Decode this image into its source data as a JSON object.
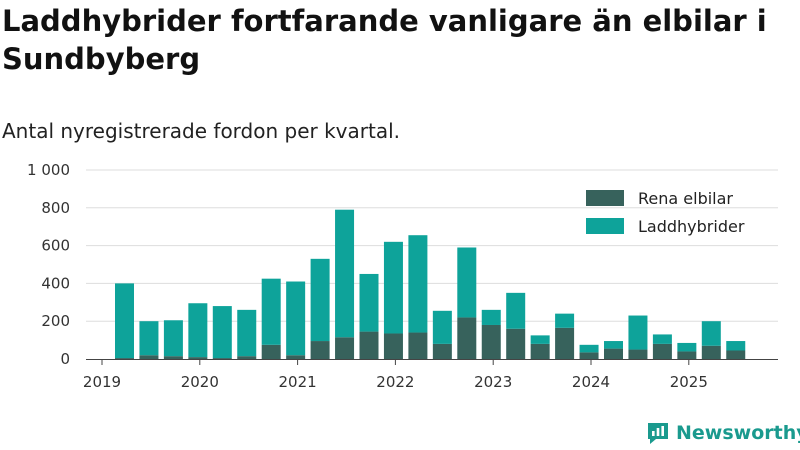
{
  "title": "Laddhybrider fortfarande vanligare än elbilar i Sundbyberg",
  "subtitle": "Antal nyregistrerade fordon per kvartal.",
  "brand": {
    "name": "Newsworthy",
    "icon": "bar-chart-icon"
  },
  "colors": {
    "elbilar": "#37625c",
    "laddhybrider": "#0ea39a",
    "grid": "#dddddd",
    "axis": "#444444"
  },
  "chart_data": {
    "type": "bar",
    "stacked": true,
    "title": "Laddhybrider fortfarande vanligare än elbilar i Sundbyberg",
    "subtitle": "Antal nyregistrerade fordon per kvartal.",
    "xlabel": "",
    "ylabel": "",
    "ylim": [
      0,
      1000
    ],
    "yticks": [
      0,
      200,
      400,
      600,
      800,
      1000
    ],
    "ytick_labels": [
      "0",
      "200",
      "400",
      "600",
      "800",
      "1 000"
    ],
    "xtick_labels": [
      "2019",
      "2020",
      "2021",
      "2022",
      "2023",
      "2024",
      "2025"
    ],
    "grid": true,
    "legend_position": "top-right",
    "categories": [
      "2019 Q2",
      "2019 Q3",
      "2019 Q4",
      "2020 Q1",
      "2020 Q2",
      "2020 Q3",
      "2020 Q4",
      "2021 Q1",
      "2021 Q2",
      "2021 Q3",
      "2021 Q4",
      "2022 Q1",
      "2022 Q2",
      "2022 Q3",
      "2022 Q4",
      "2023 Q1",
      "2023 Q2",
      "2023 Q3",
      "2023 Q4",
      "2024 Q1",
      "2024 Q2",
      "2024 Q3",
      "2024 Q4",
      "2025 Q1",
      "2025 Q2",
      "2025 Q3"
    ],
    "series": [
      {
        "name": "Rena elbilar",
        "values": [
          5,
          20,
          15,
          10,
          5,
          15,
          75,
          20,
          95,
          115,
          145,
          135,
          140,
          80,
          220,
          180,
          160,
          80,
          165,
          35,
          55,
          50,
          80,
          40,
          70,
          45
        ]
      },
      {
        "name": "Laddhybrider",
        "values": [
          395,
          180,
          190,
          285,
          275,
          245,
          350,
          390,
          435,
          675,
          305,
          485,
          515,
          175,
          370,
          80,
          190,
          45,
          75,
          40,
          40,
          180,
          50,
          45,
          130,
          50
        ]
      }
    ]
  }
}
